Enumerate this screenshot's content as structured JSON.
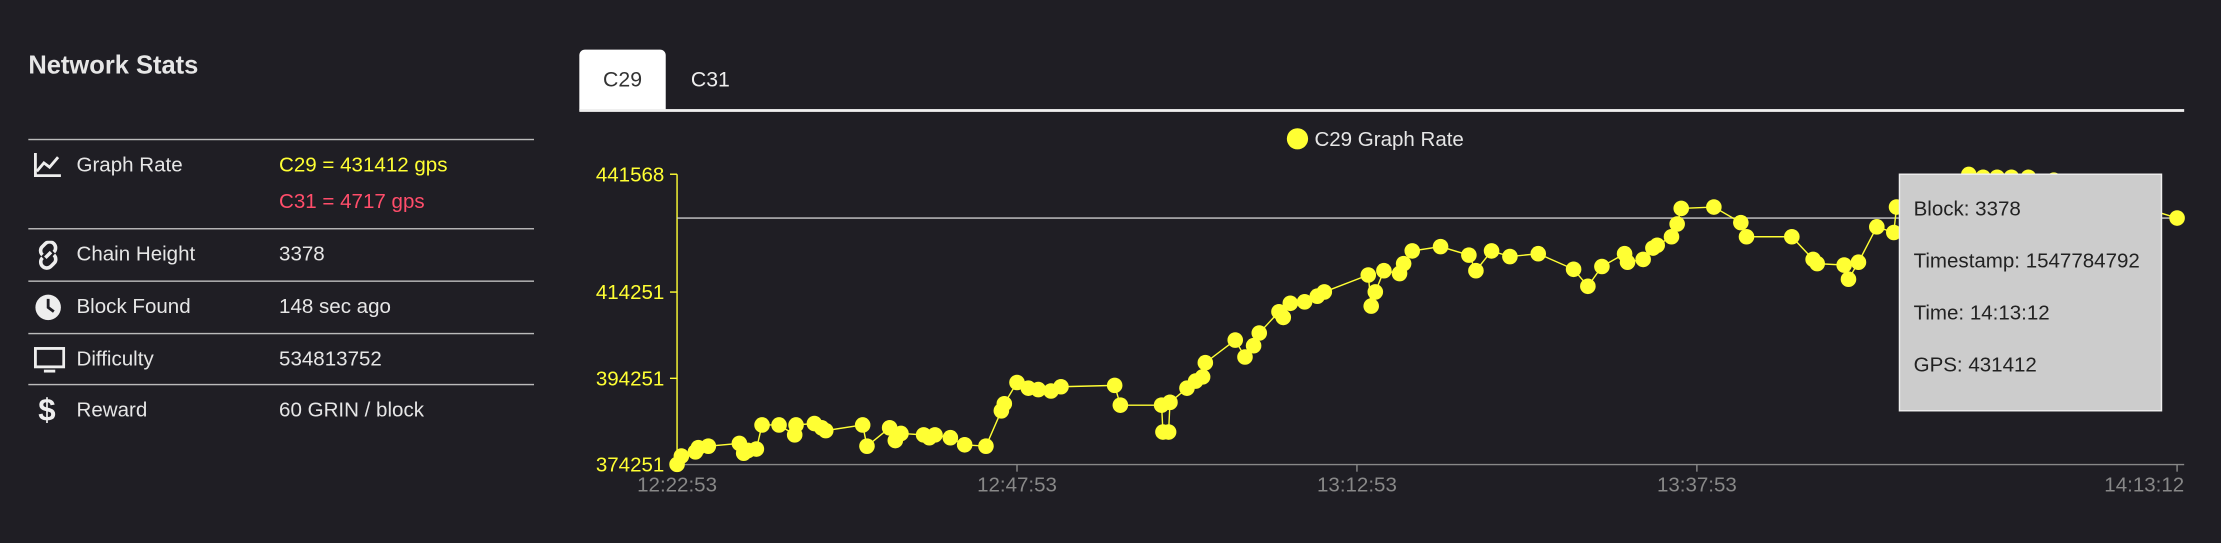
{
  "panel": {
    "title": "Network Stats",
    "rows": [
      {
        "label": "Graph Rate",
        "values": [
          "C29 = 431412 gps",
          "C31 = 4717 gps"
        ]
      },
      {
        "label": "Chain Height",
        "values": [
          "3378"
        ]
      },
      {
        "label": "Block Found",
        "values": [
          "148 sec ago"
        ]
      },
      {
        "label": "Difficulty",
        "values": [
          "534813752"
        ]
      },
      {
        "label": "Reward",
        "values": [
          "60 GRIN / block"
        ]
      }
    ]
  },
  "tabs": [
    "C29",
    "C31"
  ],
  "tooltip": [
    "Block: 3378",
    "Timestamp: 1547784792",
    "Time: 14:13:12",
    "GPS: 431412"
  ],
  "chart_data": {
    "type": "line",
    "x": [
      "12:22:53",
      "12:23:12",
      "12:24:14",
      "12:24:27",
      "12:25:11",
      "12:27:28",
      "12:27:47",
      "12:28:06",
      "12:28:43",
      "12:29:08",
      "12:30:23",
      "12:31:32",
      "12:31:38",
      "12:32:59",
      "12:33:31",
      "12:33:49",
      "12:36:32",
      "12:36:51",
      "12:38:31",
      "12:38:56",
      "12:39:21",
      "12:41:01",
      "12:41:26",
      "12:41:51",
      "12:42:59",
      "12:44:02",
      "12:45:36",
      "12:46:44",
      "12:46:57",
      "12:47:53",
      "12:48:43",
      "12:49:27",
      "12:50:23",
      "12:51:07",
      "12:55:04",
      "12:55:29",
      "12:58:31",
      "12:58:37",
      "12:59:02",
      "12:59:08",
      "13:00:23",
      "13:01:01",
      "13:01:32",
      "13:01:44",
      "13:03:56",
      "13:04:39",
      "13:05:17",
      "13:05:42",
      "13:07:09",
      "13:07:28",
      "13:07:59",
      "13:09:02",
      "13:09:58",
      "13:10:29",
      "13:13:43",
      "13:13:56",
      "13:14:14",
      "13:14:52",
      "13:16:01",
      "13:16:19",
      "13:16:57",
      "13:19:02",
      "13:21:07",
      "13:21:38",
      "13:22:47",
      "13:24:08",
      "13:26:13",
      "13:28:49",
      "13:29:52",
      "13:30:54",
      "13:32:34",
      "13:32:47",
      "13:33:56",
      "13:34:39",
      "13:34:58",
      "13:36:01",
      "13:36:26",
      "13:36:44",
      "13:39:08",
      "13:41:07",
      "13:41:32",
      "13:44:52",
      "13:46:26",
      "13:46:44",
      "13:48:43",
      "13:49:02",
      "13:49:46",
      "13:51:07",
      "13:52:22",
      "13:52:34",
      "13:57:53",
      "13:58:56",
      "13:59:58",
      "14:01:01",
      "14:02:16",
      "14:04:08",
      "14:13:12"
    ],
    "series": [
      {
        "name": "C29 Graph Rate",
        "color": "#ffff33",
        "values": [
          374300,
          376220,
          377200,
          378190,
          378520,
          379170,
          376880,
          377530,
          377860,
          383440,
          383440,
          381140,
          383440,
          383770,
          382780,
          382130,
          383440,
          378520,
          382780,
          379830,
          381470,
          381140,
          380480,
          381140,
          380480,
          378840,
          378520,
          386720,
          388360,
          393280,
          391970,
          391640,
          391310,
          392300,
          392620,
          388030,
          388030,
          381800,
          381800,
          388690,
          391970,
          393610,
          394590,
          397870,
          403120,
          399190,
          401810,
          404760,
          409680,
          408370,
          411650,
          411980,
          413290,
          414280,
          418210,
          411000,
          414280,
          419200,
          418540,
          420840,
          423790,
          424780,
          422810,
          419200,
          423790,
          422480,
          423140,
          419530,
          415590,
          420180,
          423140,
          421170,
          421820,
          424450,
          425100,
          427070,
          430030,
          433640,
          433960,
          430350,
          427070,
          427070,
          421820,
          420840,
          420510,
          417230,
          421170,
          429370,
          428060,
          433960,
          441510,
          440850,
          440850,
          440850,
          440850,
          440200,
          431412
        ]
      }
    ],
    "xlim": [
      "12:22:53",
      "14:13:12"
    ],
    "xticks": [
      "12:22:53",
      "12:47:53",
      "13:12:53",
      "13:37:53",
      "14:13:12"
    ],
    "ylim": [
      374251,
      441568
    ],
    "yticks": [
      374251,
      394251,
      414251,
      441568
    ]
  }
}
